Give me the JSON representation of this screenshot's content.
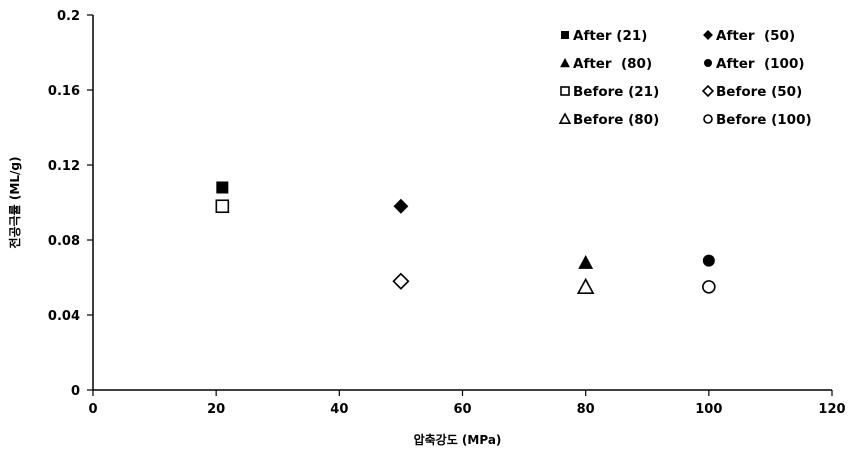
{
  "chart_data": {
    "type": "scatter",
    "xlabel": "압축강도 (MPa)",
    "ylabel": "전공극률 (ML/g)",
    "xlim": [
      0,
      120
    ],
    "ylim": [
      0,
      0.2
    ],
    "x_ticks": [
      0,
      20,
      40,
      60,
      80,
      100,
      120
    ],
    "y_ticks": [
      0,
      0.04,
      0.08,
      0.12,
      0.16,
      0.2
    ],
    "x_tick_labels": [
      "0",
      "20",
      "40",
      "60",
      "80",
      "100",
      "120"
    ],
    "y_tick_labels": [
      "0",
      "0.04",
      "0.08",
      "0.12",
      "0.16",
      "0.2"
    ],
    "grid": false,
    "legend_placement": "top-right",
    "series": [
      {
        "name": "After (21)",
        "marker": "square-filled",
        "x": [
          21
        ],
        "y": [
          0.108
        ]
      },
      {
        "name": "After  (50)",
        "marker": "diamond-filled",
        "x": [
          50
        ],
        "y": [
          0.098
        ]
      },
      {
        "name": "After  (80)",
        "marker": "triangle-filled",
        "x": [
          80
        ],
        "y": [
          0.068
        ]
      },
      {
        "name": "After  (100)",
        "marker": "circle-filled",
        "x": [
          100
        ],
        "y": [
          0.069
        ]
      },
      {
        "name": "Before (21)",
        "marker": "square-open",
        "x": [
          21
        ],
        "y": [
          0.098
        ]
      },
      {
        "name": "Before (50)",
        "marker": "diamond-open",
        "x": [
          50
        ],
        "y": [
          0.058
        ]
      },
      {
        "name": "Before (80)",
        "marker": "triangle-open",
        "x": [
          80
        ],
        "y": [
          0.055
        ]
      },
      {
        "name": "Before (100)",
        "marker": "circle-open",
        "x": [
          100
        ],
        "y": [
          0.055
        ]
      }
    ],
    "colors": {
      "axis": "#000000",
      "marker": "#000000",
      "background": "#ffffff"
    }
  }
}
